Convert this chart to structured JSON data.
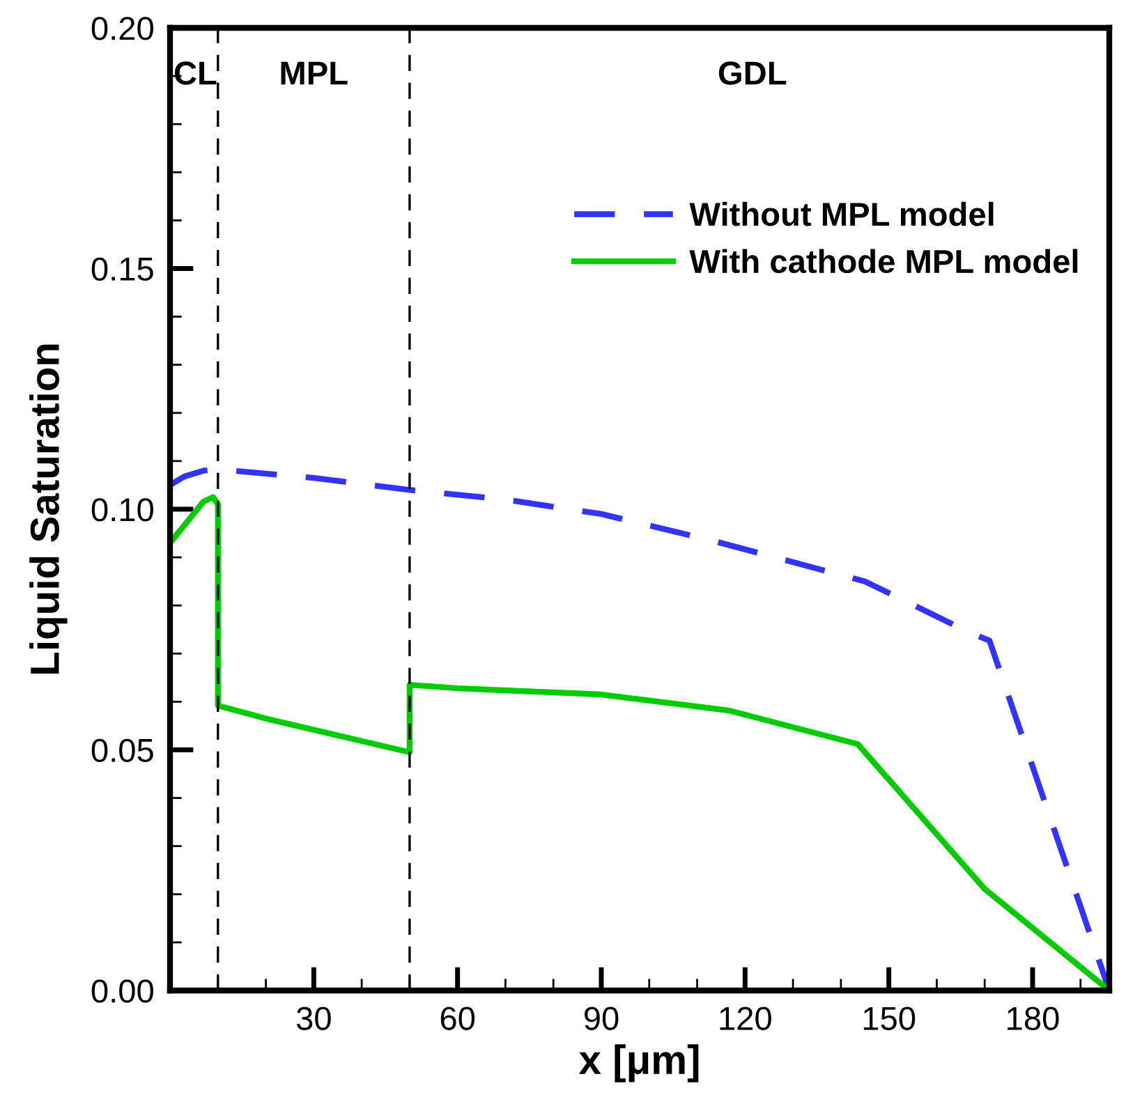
{
  "chart_data": {
    "type": "line",
    "xlabel": "x [μm]",
    "ylabel": "Liquid Saturation",
    "xlim": [
      0,
      196
    ],
    "xticks": [
      30,
      60,
      90,
      120,
      150,
      180
    ],
    "ylim": [
      0,
      0.2
    ],
    "yticks": [
      {
        "value": 0,
        "label": "0.00"
      },
      {
        "value": 0.05,
        "label": "0.05"
      },
      {
        "value": 0.1,
        "label": "0.10"
      },
      {
        "value": 0.15,
        "label": "0.15"
      },
      {
        "value": 0.2,
        "label": "0.20"
      }
    ],
    "grid": false,
    "legend": "top right",
    "series": [
      {
        "name": "Without MPL model",
        "color": "#3333ff",
        "line_style": "dashed",
        "x": [
          0,
          3,
          7,
          10,
          30,
          50,
          70,
          90,
          113,
          130,
          145,
          167,
          171,
          196
        ],
        "values": [
          0.105,
          0.1068,
          0.108,
          0.1083,
          0.1065,
          0.104,
          0.102,
          0.099,
          0.0935,
          0.089,
          0.085,
          0.0743,
          0.0727,
          0
        ]
      },
      {
        "name": "With cathode MPL model",
        "color": "#00cc00",
        "line_style": "solid",
        "x": [
          0,
          7,
          9,
          10,
          10,
          20,
          50,
          50,
          60,
          90,
          116.5,
          143.5,
          170,
          196
        ],
        "values": [
          0.093,
          0.1016,
          0.1025,
          0.101,
          0.0592,
          0.0565,
          0.0495,
          0.0635,
          0.0628,
          0.0615,
          0.0582,
          0.0512,
          0.0211,
          0
        ]
      }
    ],
    "ref_lines": [
      {
        "axis": "x",
        "value": 10,
        "color": "#000000",
        "line_style": "dashed"
      },
      {
        "axis": "x",
        "value": 50,
        "color": "#000000",
        "line_style": "dashed"
      }
    ],
    "annotations": [
      "CL",
      "MPL",
      "GDL"
    ]
  }
}
